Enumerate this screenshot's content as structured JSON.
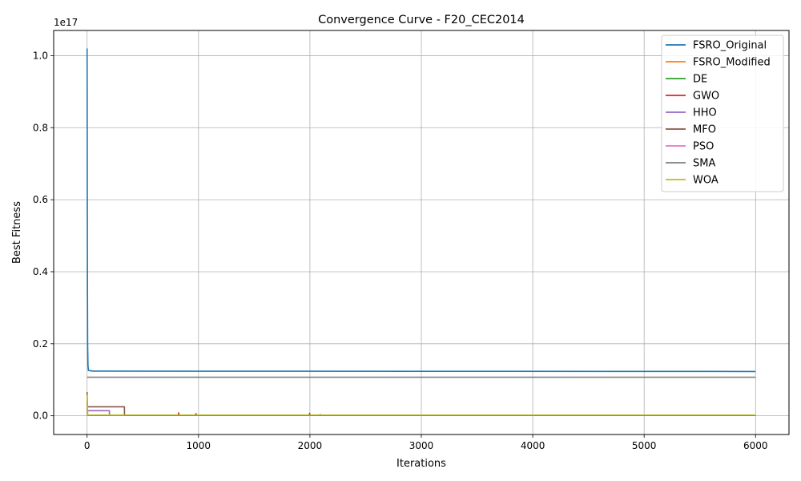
{
  "chart_data": {
    "type": "line",
    "title": "Convergence Curve - F20_CEC2014",
    "xlabel": "Iterations",
    "ylabel": "Best Fitness",
    "y_offset_label": "1e17",
    "xlim": [
      -300,
      6300
    ],
    "ylim": [
      -0.052,
      1.07
    ],
    "y_scale": "1e17",
    "x_ticks": [
      0,
      1000,
      2000,
      3000,
      4000,
      5000,
      6000
    ],
    "x_tick_labels": [
      "0",
      "1000",
      "2000",
      "3000",
      "4000",
      "5000",
      "6000"
    ],
    "y_ticks": [
      0.0,
      0.2,
      0.4,
      0.6,
      0.8,
      1.0
    ],
    "y_tick_labels": [
      "0.0",
      "0.2",
      "0.4",
      "0.6",
      "0.8",
      "1.0"
    ],
    "grid": true,
    "legend_position": "top-right",
    "series": [
      {
        "name": "FSRO_Original",
        "color": "#1f77b4",
        "points": [
          [
            0,
            1.02
          ],
          [
            1,
            0.82
          ],
          [
            2,
            0.6
          ],
          [
            3,
            0.38
          ],
          [
            5,
            0.2
          ],
          [
            8,
            0.14
          ],
          [
            12,
            0.126
          ],
          [
            50,
            0.124
          ],
          [
            6000,
            0.123
          ]
        ]
      },
      {
        "name": "FSRO_Modified",
        "color": "#ff7f0e",
        "points": [
          [
            0,
            0.01
          ],
          [
            6,
            0.0015
          ],
          [
            6000,
            0.0015
          ]
        ]
      },
      {
        "name": "DE",
        "color": "#2ca02c",
        "points": [
          [
            0,
            0.008
          ],
          [
            5,
            0.001
          ],
          [
            6000,
            0.001
          ]
        ]
      },
      {
        "name": "GWO",
        "color": "#d62728",
        "points": [
          [
            0,
            0.02
          ],
          [
            5,
            0.002
          ],
          [
            820,
            0.002
          ],
          [
            822,
            0.008
          ],
          [
            826,
            0.002
          ],
          [
            975,
            0.002
          ],
          [
            977,
            0.006
          ],
          [
            981,
            0.002
          ],
          [
            1995,
            0.002
          ],
          [
            1997,
            0.007
          ],
          [
            2001,
            0.002
          ],
          [
            6000,
            0.001
          ]
        ]
      },
      {
        "name": "HHO",
        "color": "#9467bd",
        "points": [
          [
            0,
            0.04
          ],
          [
            2,
            0.014
          ],
          [
            200,
            0.014
          ],
          [
            201,
            0.001
          ],
          [
            6000,
            0.001
          ]
        ]
      },
      {
        "name": "MFO",
        "color": "#8c564b",
        "points": [
          [
            0,
            0.066
          ],
          [
            3,
            0.025
          ],
          [
            335,
            0.025
          ],
          [
            336,
            0.001
          ],
          [
            6000,
            0.001
          ]
        ]
      },
      {
        "name": "PSO",
        "color": "#e377c2",
        "points": [
          [
            0,
            0.01
          ],
          [
            5,
            0.002
          ],
          [
            2090,
            0.002
          ],
          [
            2092,
            0.004
          ],
          [
            2096,
            0.002
          ],
          [
            6000,
            0.002
          ]
        ]
      },
      {
        "name": "SMA",
        "color": "#7f7f7f",
        "points": [
          [
            0,
            0.107
          ],
          [
            6000,
            0.107
          ]
        ]
      },
      {
        "name": "WOA",
        "color": "#bcbd22",
        "points": [
          [
            0,
            0.058
          ],
          [
            3,
            0.02
          ],
          [
            6,
            0.002
          ],
          [
            6000,
            0.002
          ]
        ]
      }
    ]
  }
}
